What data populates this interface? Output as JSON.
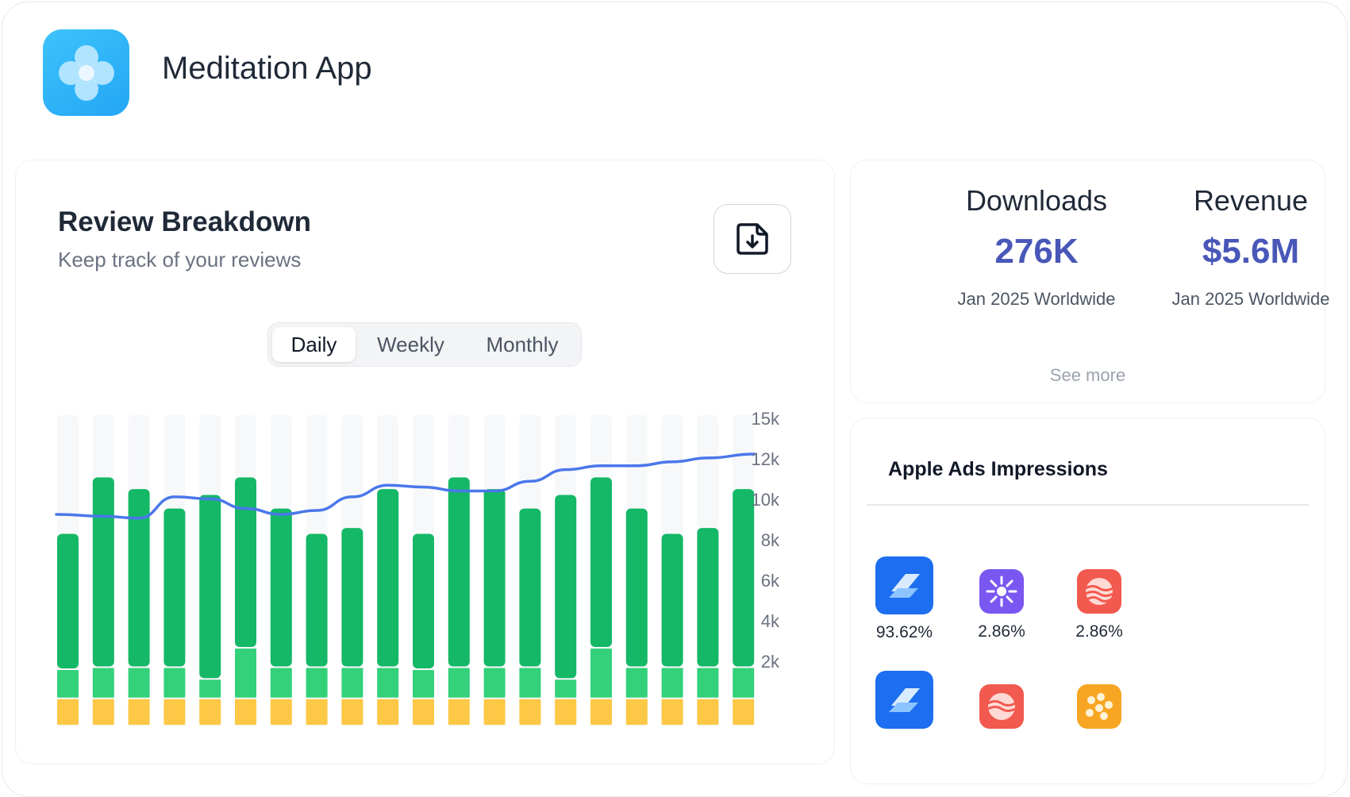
{
  "app": {
    "title": "Meditation App"
  },
  "review": {
    "title": "Review Breakdown",
    "subtitle": "Keep track of your reviews",
    "tabs": [
      {
        "label": "Daily",
        "active": true
      },
      {
        "label": "Weekly",
        "active": false
      },
      {
        "label": "Monthly",
        "active": false
      }
    ]
  },
  "chart_data": {
    "type": "bar",
    "stacked": true,
    "categories": [
      "",
      "",
      "",
      "",
      "",
      "",
      "",
      "",
      "",
      "",
      "",
      "",
      "",
      "",
      "",
      "",
      "",
      "",
      "",
      ""
    ],
    "series": [
      {
        "color": "#fcc845",
        "values": [
          1400,
          1400,
          1400,
          1400,
          1400,
          1400,
          1400,
          1400,
          1400,
          1400,
          1400,
          1400,
          1400,
          1400,
          1400,
          1400,
          1400,
          1400,
          1400,
          1400
        ]
      },
      {
        "color": "#33d17a",
        "values": [
          1500,
          1600,
          1600,
          1600,
          1000,
          2600,
          1600,
          1600,
          1600,
          1600,
          1500,
          1600,
          1600,
          1600,
          1000,
          2600,
          1600,
          1600,
          1600,
          1600
        ]
      },
      {
        "color": "#14b866",
        "values": [
          7000,
          9800,
          9200,
          8200,
          9500,
          8800,
          8200,
          6900,
          7200,
          9200,
          7000,
          9800,
          9200,
          8200,
          9500,
          8800,
          8200,
          6900,
          7200,
          9200
        ]
      },
      {
        "type": "line",
        "color": "#4a77ea",
        "values": [
          10900,
          10800,
          10700,
          11800,
          11700,
          11200,
          10900,
          11100,
          11800,
          12400,
          12300,
          12100,
          12100,
          12600,
          13200,
          13400,
          13400,
          13600,
          13800,
          14000
        ]
      }
    ],
    "yticks": [
      "15k",
      "12k",
      "10k",
      "8k",
      "6k",
      "4k",
      "2k"
    ],
    "ylim": [
      0,
      16000
    ],
    "grid": false,
    "colors": {
      "background_bar": "#f7f8fa"
    }
  },
  "downloads": {
    "items": [
      {
        "label": "Downloads",
        "value": "276K",
        "meta": "Jan 2025 Worldwide"
      },
      {
        "label": "Revenue",
        "value": "$5.6M",
        "meta": "Jan 2025 Worldwide"
      }
    ],
    "see_more": "See more"
  },
  "ads": {
    "title": "Apple Ads Impressions",
    "items": [
      {
        "icon": "blue-stack-icon",
        "pct": "93.62%"
      },
      {
        "icon": "purple-sun-icon",
        "pct": "2.86%"
      },
      {
        "icon": "coral-wave-icon",
        "pct": "2.86%"
      },
      {
        "icon": "blue-stack-icon",
        "pct": ""
      },
      {
        "icon": "coral-wave-icon",
        "pct": ""
      },
      {
        "icon": "orange-pattern-icon",
        "pct": ""
      }
    ]
  },
  "colors": {
    "accent": "#4957b8",
    "bar_dark_green": "#14b866",
    "bar_light_green": "#33d17a",
    "bar_yellow": "#fcc845",
    "line_blue": "#4a77ea"
  }
}
